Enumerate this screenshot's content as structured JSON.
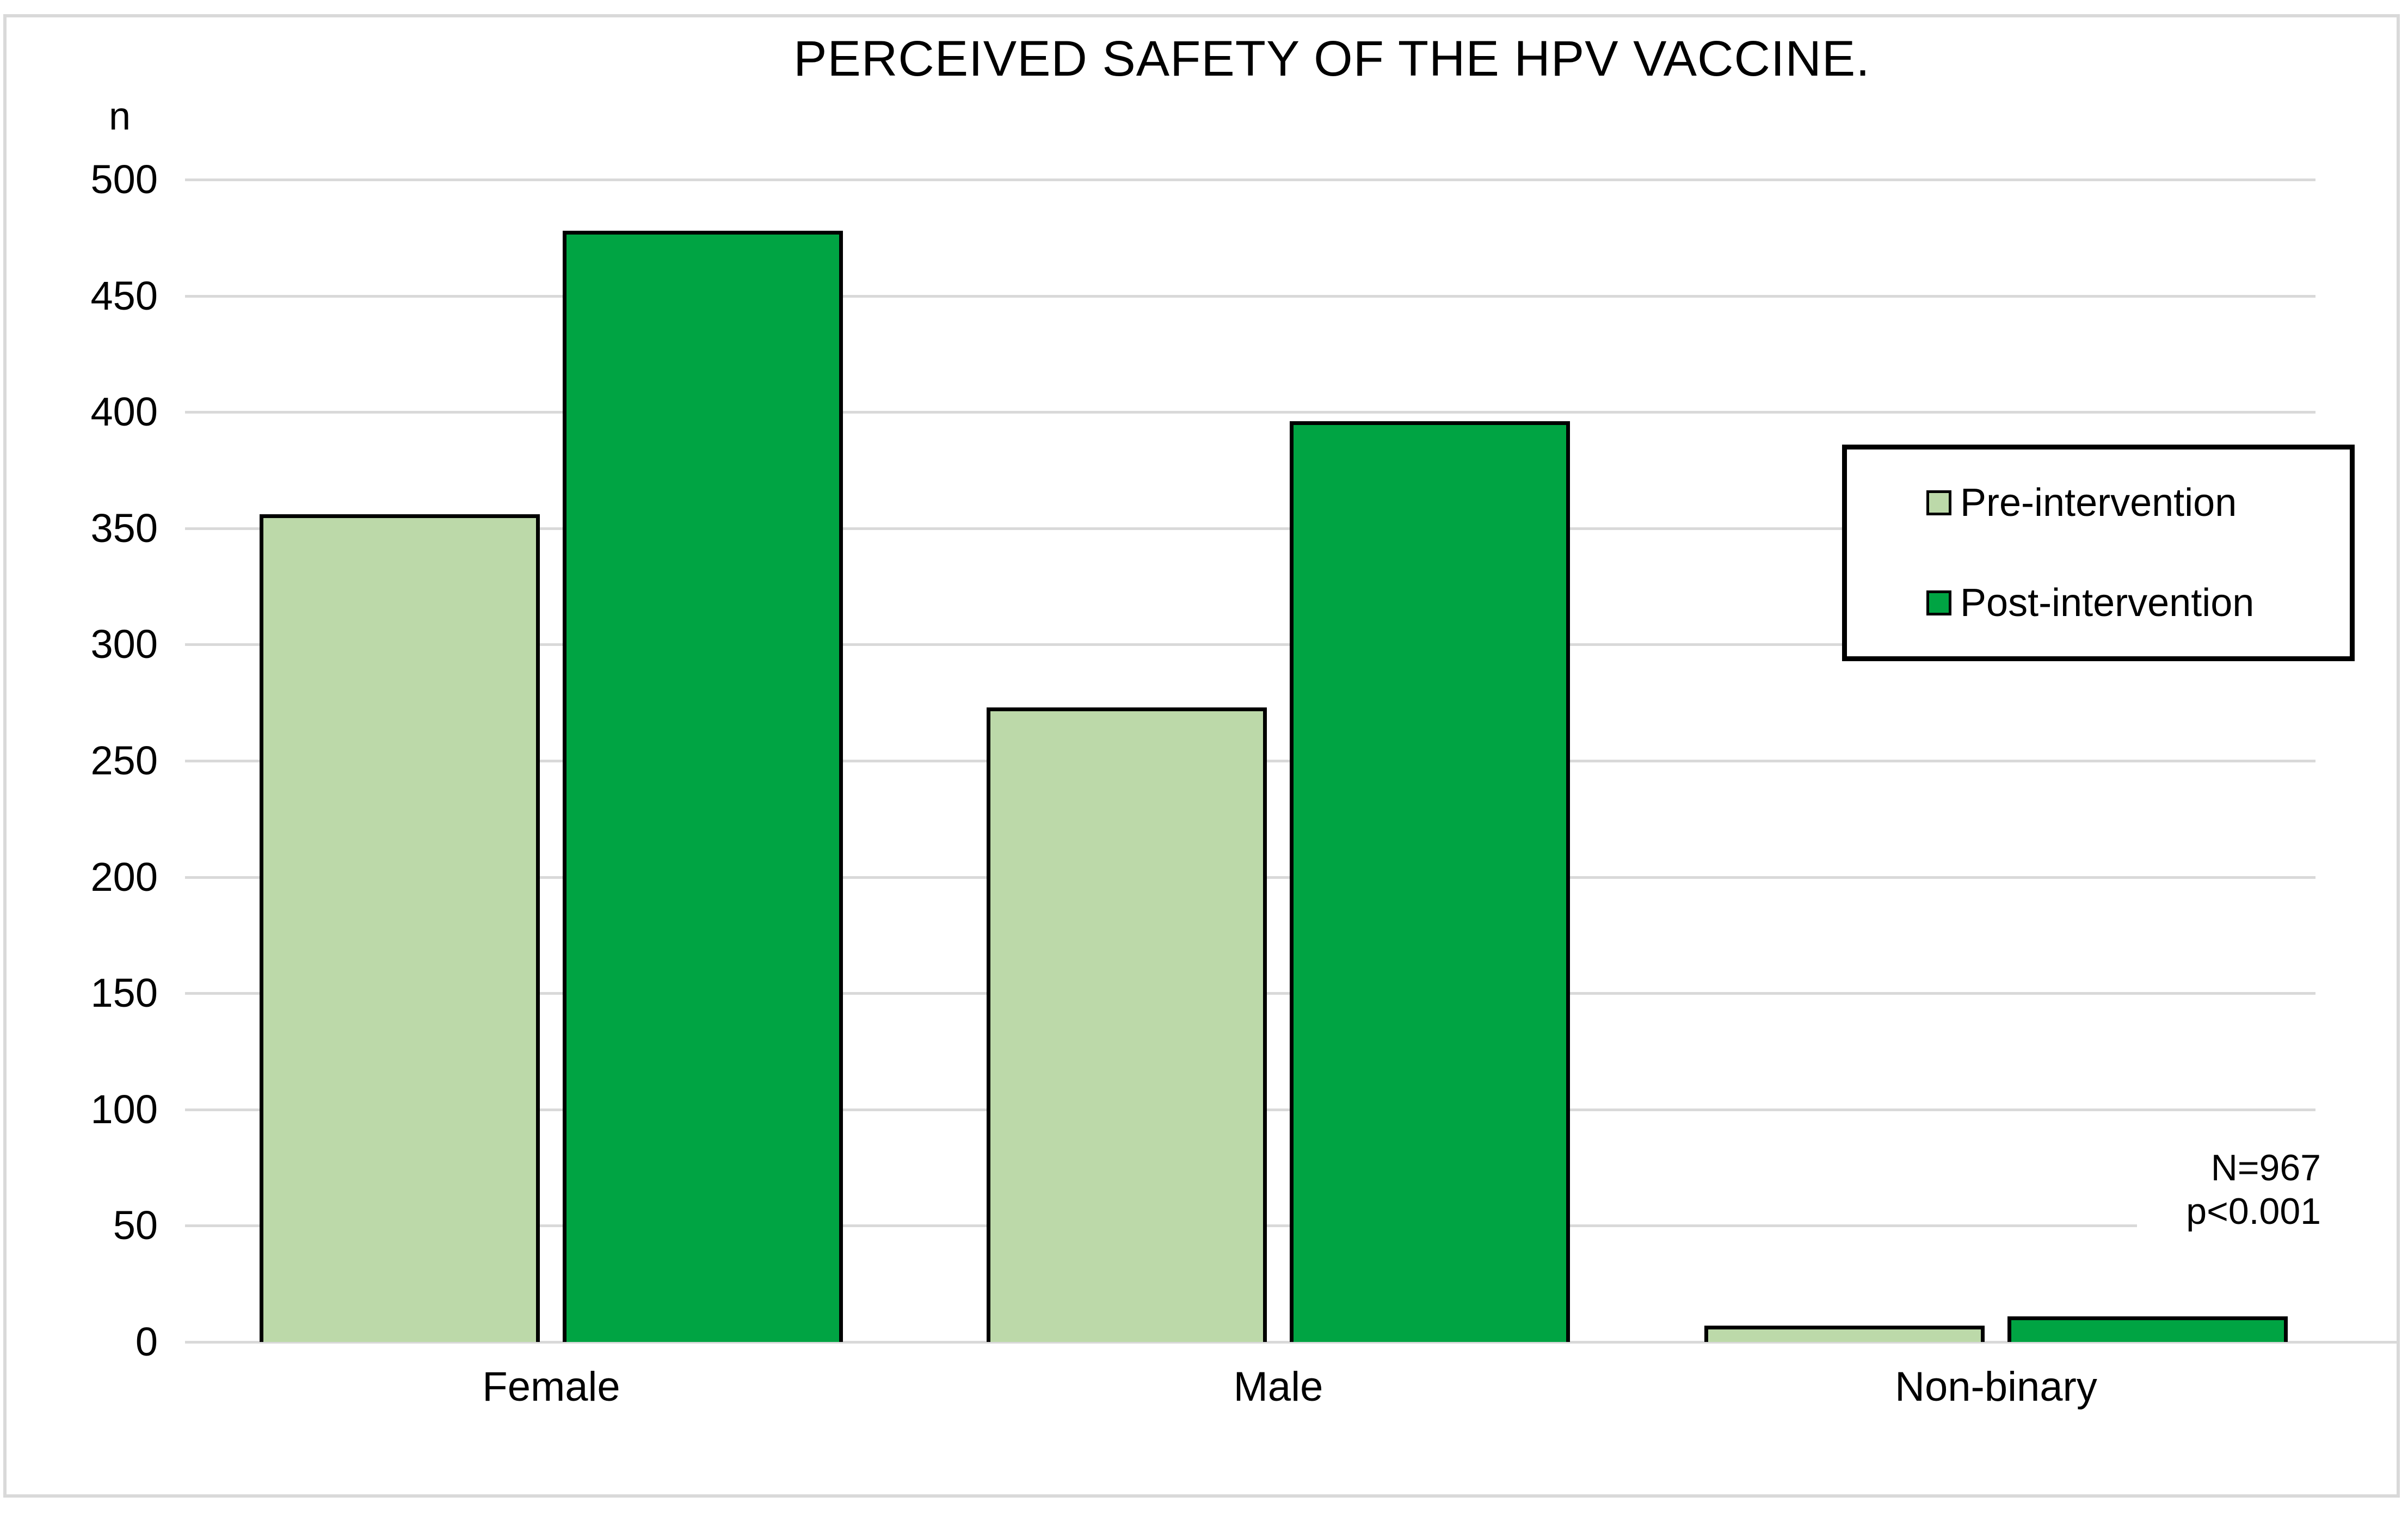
{
  "figure": {
    "title": "PERCEIVED SAFETY OF THE HPV VACCINE.",
    "y_axis_label": "n",
    "annotation": {
      "line1": "N=967",
      "line2": "p<0.001"
    }
  },
  "legend": {
    "items": [
      {
        "label": "Pre-intervention",
        "color": "#BCD9A9"
      },
      {
        "label": "Post-intervention",
        "color": "#00A443"
      }
    ]
  },
  "chart_data": {
    "type": "bar",
    "title": "PERCEIVED SAFETY OF THE HPV VACCINE.",
    "categories": [
      "Female",
      "Male",
      "Non-binary"
    ],
    "series": [
      {
        "name": "Pre-intervention",
        "color": "#BCD9A9",
        "values": [
          356,
          273,
          7
        ]
      },
      {
        "name": "Post-intervention",
        "color": "#00A443",
        "values": [
          478,
          396,
          11
        ]
      }
    ],
    "xlabel": "",
    "ylabel": "n",
    "ylim": [
      0,
      500
    ],
    "ytick_step": 50,
    "yticks": [
      "0",
      "50",
      "100",
      "150",
      "200",
      "250",
      "300",
      "350",
      "400",
      "450",
      "500"
    ],
    "grid": true,
    "legend_position": "inside-right",
    "annotations": [
      "N=967",
      "p<0.001"
    ],
    "colors": {
      "gridline": "#D9D9D9",
      "bar_border": "#000000",
      "frame": "#D9D9D9",
      "text": "#000000",
      "background": "#FFFFFF"
    }
  }
}
